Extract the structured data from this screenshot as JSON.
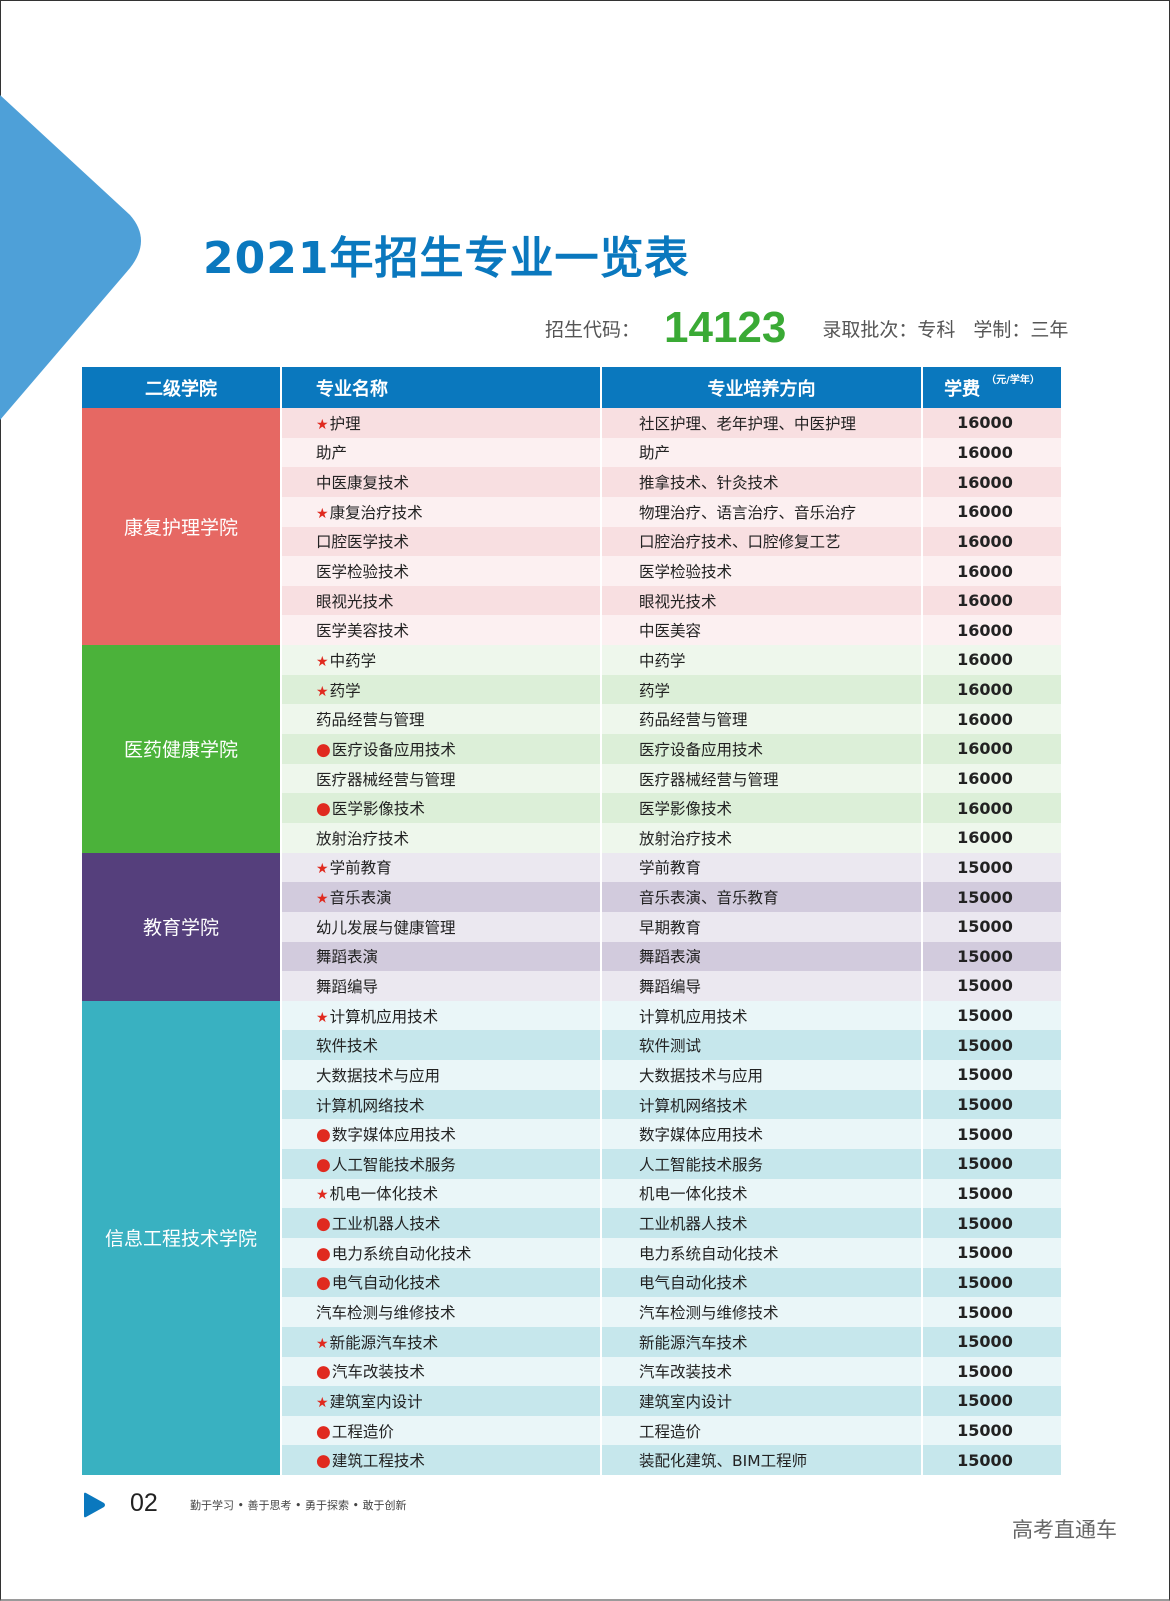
{
  "header": {
    "title": "2021年招生专业一览表",
    "code_label": "招生代码：",
    "code_value": "14123",
    "batch_label": "录取批次：专科",
    "duration_label": "学制：三年"
  },
  "colors": {
    "primary_blue": "#0a78be",
    "code_green": "#3aaa35",
    "mark_red": "#e02a1f",
    "deco_triangle": "#4ea0d8"
  },
  "table": {
    "columns": [
      {
        "label": "二级学院"
      },
      {
        "label": "专业名称"
      },
      {
        "label": "专业培养方向"
      },
      {
        "label": "学费",
        "unit": "（元/学年）"
      }
    ],
    "legend_marks": {
      "star": "★",
      "dot": "●"
    },
    "colleges": [
      {
        "name": "康复护理学院",
        "color": "#e66863",
        "row_a": "#f8dfe1",
        "row_b": "#fcf0f1",
        "rows": [
          {
            "mark": "★",
            "major": "护理",
            "direction": "社区护理、老年护理、中医护理",
            "fee": "16000"
          },
          {
            "mark": "",
            "major": "助产",
            "direction": "助产",
            "fee": "16000"
          },
          {
            "mark": "",
            "major": "中医康复技术",
            "direction": "推拿技术、针灸技术",
            "fee": "16000"
          },
          {
            "mark": "★",
            "major": "康复治疗技术",
            "direction": "物理治疗、语言治疗、音乐治疗",
            "fee": "16000"
          },
          {
            "mark": "",
            "major": "口腔医学技术",
            "direction": "口腔治疗技术、口腔修复工艺",
            "fee": "16000"
          },
          {
            "mark": "",
            "major": "医学检验技术",
            "direction": "医学检验技术",
            "fee": "16000"
          },
          {
            "mark": "",
            "major": "眼视光技术",
            "direction": "眼视光技术",
            "fee": "16000"
          },
          {
            "mark": "",
            "major": "医学美容技术",
            "direction": "中医美容",
            "fee": "16000"
          }
        ]
      },
      {
        "name": "医药健康学院",
        "color": "#4bb23a",
        "row_a": "#eef7ec",
        "row_b": "#dcefd8",
        "rows": [
          {
            "mark": "★",
            "major": "中药学",
            "direction": "中药学",
            "fee": "16000"
          },
          {
            "mark": "★",
            "major": "药学",
            "direction": "药学",
            "fee": "16000"
          },
          {
            "mark": "",
            "major": "药品经营与管理",
            "direction": "药品经营与管理",
            "fee": "16000"
          },
          {
            "mark": "●",
            "major": "医疗设备应用技术",
            "direction": "医疗设备应用技术",
            "fee": "16000"
          },
          {
            "mark": "",
            "major": "医疗器械经营与管理",
            "direction": "医疗器械经营与管理",
            "fee": "16000"
          },
          {
            "mark": "●",
            "major": "医学影像技术",
            "direction": "医学影像技术",
            "fee": "16000"
          },
          {
            "mark": "",
            "major": "放射治疗技术",
            "direction": "放射治疗技术",
            "fee": "16000"
          }
        ]
      },
      {
        "name": "教育学院",
        "color": "#553f7c",
        "row_a": "#ebe8f0",
        "row_b": "#d2cbdd",
        "rows": [
          {
            "mark": "★",
            "major": "学前教育",
            "direction": "学前教育",
            "fee": "15000"
          },
          {
            "mark": "★",
            "major": "音乐表演",
            "direction": "音乐表演、音乐教育",
            "fee": "15000"
          },
          {
            "mark": "",
            "major": "幼儿发展与健康管理",
            "direction": "早期教育",
            "fee": "15000"
          },
          {
            "mark": "",
            "major": "舞蹈表演",
            "direction": "舞蹈表演",
            "fee": "15000"
          },
          {
            "mark": "",
            "major": "舞蹈编导",
            "direction": "舞蹈编导",
            "fee": "15000"
          }
        ]
      },
      {
        "name": "信息工程技术学院",
        "color": "#39b1c1",
        "row_a": "#eaf6f8",
        "row_b": "#c6e7ec",
        "rows": [
          {
            "mark": "★",
            "major": "计算机应用技术",
            "direction": "计算机应用技术",
            "fee": "15000"
          },
          {
            "mark": "",
            "major": "软件技术",
            "direction": "软件测试",
            "fee": "15000"
          },
          {
            "mark": "",
            "major": "大数据技术与应用",
            "direction": "大数据技术与应用",
            "fee": "15000"
          },
          {
            "mark": "",
            "major": "计算机网络技术",
            "direction": "计算机网络技术",
            "fee": "15000"
          },
          {
            "mark": "●",
            "major": "数字媒体应用技术",
            "direction": "数字媒体应用技术",
            "fee": "15000"
          },
          {
            "mark": "●",
            "major": "人工智能技术服务",
            "direction": "人工智能技术服务",
            "fee": "15000"
          },
          {
            "mark": "★",
            "major": "机电一体化技术",
            "direction": "机电一体化技术",
            "fee": "15000"
          },
          {
            "mark": "●",
            "major": "工业机器人技术",
            "direction": "工业机器人技术",
            "fee": "15000"
          },
          {
            "mark": "●",
            "major": "电力系统自动化技术",
            "direction": "电力系统自动化技术",
            "fee": "15000"
          },
          {
            "mark": "●",
            "major": "电气自动化技术",
            "direction": "电气自动化技术",
            "fee": "15000"
          },
          {
            "mark": "",
            "major": "汽车检测与维修技术",
            "direction": "汽车检测与维修技术",
            "fee": "15000"
          },
          {
            "mark": "★",
            "major": "新能源汽车技术",
            "direction": "新能源汽车技术",
            "fee": "15000"
          },
          {
            "mark": "●",
            "major": "汽车改装技术",
            "direction": "汽车改装技术",
            "fee": "15000"
          },
          {
            "mark": "★",
            "major": "建筑室内设计",
            "direction": "建筑室内设计",
            "fee": "15000"
          },
          {
            "mark": "●",
            "major": "工程造价",
            "direction": "工程造价",
            "fee": "15000"
          },
          {
            "mark": "●",
            "major": "建筑工程技术",
            "direction": "装配化建筑、BIM工程师",
            "fee": "15000"
          }
        ]
      }
    ]
  },
  "footer": {
    "page_number": "02",
    "slogan": "勤于学习 • 善于思考 • 勇于探索 • 敢于创新",
    "watermark": "高考直通车"
  }
}
